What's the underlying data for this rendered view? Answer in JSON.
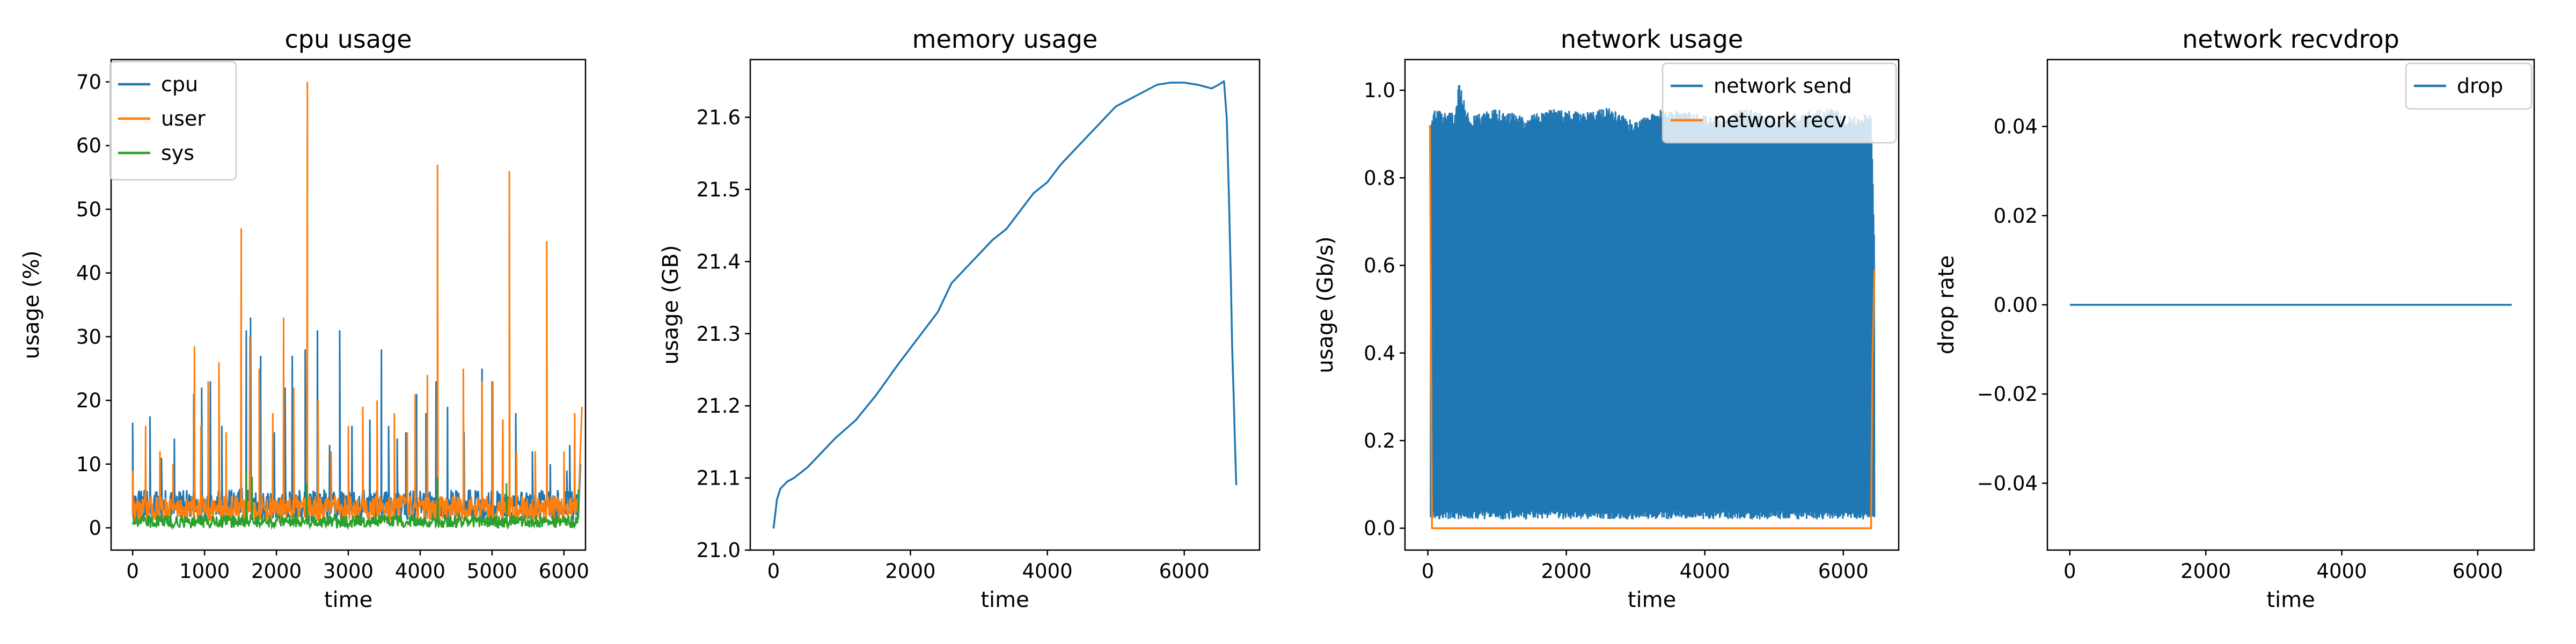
{
  "chart_data": [
    {
      "type": "line",
      "title": "cpu usage",
      "xlabel": "time",
      "ylabel": "usage (%)",
      "xlim": [
        -300,
        6300
      ],
      "ylim": [
        -3.5,
        73.5
      ],
      "xticks": [
        0,
        1000,
        2000,
        3000,
        4000,
        5000,
        6000
      ],
      "yticks": [
        0,
        10,
        20,
        30,
        40,
        50,
        60,
        70
      ],
      "legend_position": "upper left",
      "series": [
        {
          "name": "cpu",
          "color": "#1f77b4",
          "base": [
            1,
            6
          ],
          "points": [
            [
              0,
              16.5
            ],
            [
              240,
              17.5
            ],
            [
              400,
              11
            ],
            [
              580,
              14
            ],
            [
              850,
              21
            ],
            [
              960,
              22
            ],
            [
              1080,
              23
            ],
            [
              1240,
              16
            ],
            [
              1510,
              21
            ],
            [
              1580,
              31
            ],
            [
              1640,
              33
            ],
            [
              1780,
              27
            ],
            [
              1970,
              15
            ],
            [
              2120,
              22
            ],
            [
              2220,
              27
            ],
            [
              2400,
              28
            ],
            [
              2570,
              31
            ],
            [
              2740,
              13
            ],
            [
              2880,
              31
            ],
            [
              3050,
              16
            ],
            [
              3300,
              17
            ],
            [
              3460,
              28
            ],
            [
              3560,
              16
            ],
            [
              3680,
              14
            ],
            [
              3800,
              15
            ],
            [
              3950,
              21
            ],
            [
              4080,
              18
            ],
            [
              4220,
              23
            ],
            [
              4380,
              19
            ],
            [
              4610,
              15
            ],
            [
              4860,
              25
            ],
            [
              5000,
              23
            ],
            [
              5150,
              17
            ],
            [
              5330,
              18
            ],
            [
              5560,
              12
            ],
            [
              5810,
              10
            ],
            [
              6040,
              9
            ],
            [
              6080,
              13
            ],
            [
              6180,
              2
            ],
            [
              6230,
              10
            ]
          ]
        },
        {
          "name": "user",
          "color": "#ff7f0e",
          "base": [
            1,
            5
          ],
          "points": [
            [
              0,
              9
            ],
            [
              180,
              16
            ],
            [
              380,
              12
            ],
            [
              560,
              10
            ],
            [
              860,
              28.5
            ],
            [
              950,
              16
            ],
            [
              1050,
              23
            ],
            [
              1200,
              26
            ],
            [
              1300,
              15
            ],
            [
              1510,
              47
            ],
            [
              1630,
              30
            ],
            [
              1760,
              25
            ],
            [
              1950,
              18
            ],
            [
              2100,
              33
            ],
            [
              2240,
              22
            ],
            [
              2430,
              70
            ],
            [
              2580,
              20
            ],
            [
              2760,
              12
            ],
            [
              3000,
              16
            ],
            [
              3200,
              19
            ],
            [
              3400,
              20
            ],
            [
              3640,
              18
            ],
            [
              3820,
              15
            ],
            [
              3930,
              21
            ],
            [
              4100,
              24
            ],
            [
              4240,
              57
            ],
            [
              4600,
              25
            ],
            [
              4860,
              23
            ],
            [
              5010,
              23
            ],
            [
              5150,
              17
            ],
            [
              5240,
              56
            ],
            [
              5340,
              12
            ],
            [
              5600,
              12
            ],
            [
              5760,
              45
            ],
            [
              6000,
              12
            ],
            [
              6150,
              18
            ],
            [
              6250,
              19
            ]
          ]
        },
        {
          "name": "sys",
          "color": "#2ca02c",
          "base": [
            0,
            2
          ],
          "points": [
            [
              1580,
              9
            ],
            [
              1660,
              8
            ],
            [
              2420,
              7
            ],
            [
              4240,
              8
            ],
            [
              5200,
              7
            ],
            [
              6200,
              6
            ]
          ]
        }
      ]
    },
    {
      "type": "line",
      "title": "memory usage",
      "xlabel": "time",
      "ylabel": "usage (GB)",
      "xlim": [
        -340,
        7100
      ],
      "ylim": [
        21.0,
        21.68
      ],
      "xticks": [
        0,
        2000,
        4000,
        6000
      ],
      "yticks": [
        21.0,
        21.1,
        21.2,
        21.3,
        21.4,
        21.5,
        21.6
      ],
      "series": [
        {
          "name": "",
          "color": "#1f77b4",
          "points": [
            [
              0,
              21.03
            ],
            [
              50,
              21.07
            ],
            [
              100,
              21.085
            ],
            [
              200,
              21.095
            ],
            [
              300,
              21.1
            ],
            [
              500,
              21.115
            ],
            [
              700,
              21.135
            ],
            [
              900,
              21.155
            ],
            [
              1200,
              21.18
            ],
            [
              1500,
              21.215
            ],
            [
              1800,
              21.255
            ],
            [
              2000,
              21.28
            ],
            [
              2200,
              21.305
            ],
            [
              2400,
              21.33
            ],
            [
              2600,
              21.37
            ],
            [
              2800,
              21.39
            ],
            [
              3000,
              21.41
            ],
            [
              3200,
              21.43
            ],
            [
              3400,
              21.445
            ],
            [
              3600,
              21.47
            ],
            [
              3800,
              21.495
            ],
            [
              4000,
              21.51
            ],
            [
              4200,
              21.535
            ],
            [
              4400,
              21.555
            ],
            [
              4600,
              21.575
            ],
            [
              4800,
              21.595
            ],
            [
              5000,
              21.615
            ],
            [
              5200,
              21.625
            ],
            [
              5400,
              21.635
            ],
            [
              5600,
              21.645
            ],
            [
              5800,
              21.648
            ],
            [
              6000,
              21.648
            ],
            [
              6200,
              21.645
            ],
            [
              6400,
              21.64
            ],
            [
              6500,
              21.645
            ],
            [
              6580,
              21.65
            ],
            [
              6620,
              21.6
            ],
            [
              6650,
              21.5
            ],
            [
              6680,
              21.38
            ],
            [
              6700,
              21.28
            ],
            [
              6720,
              21.22
            ],
            [
              6740,
              21.15
            ],
            [
              6760,
              21.09
            ]
          ]
        }
      ]
    },
    {
      "type": "line",
      "title": "network usage",
      "xlabel": "time",
      "ylabel": "usage (Gb/s)",
      "xlim": [
        -330,
        6800
      ],
      "ylim": [
        -0.05,
        1.07
      ],
      "xticks": [
        0,
        2000,
        4000,
        6000
      ],
      "yticks": [
        0.0,
        0.2,
        0.4,
        0.6,
        0.8,
        1.0
      ],
      "legend_position": "upper right",
      "series": [
        {
          "name": "network send",
          "color": "#1f77b4",
          "band_low": 0.02,
          "envelope": [
            [
              40,
              0.92
            ],
            [
              100,
              0.96
            ],
            [
              200,
              0.95
            ],
            [
              400,
              0.95
            ],
            [
              450,
              1.02
            ],
            [
              600,
              0.94
            ],
            [
              1000,
              0.96
            ],
            [
              1400,
              0.94
            ],
            [
              1800,
              0.96
            ],
            [
              2200,
              0.95
            ],
            [
              2600,
              0.96
            ],
            [
              3000,
              0.93
            ],
            [
              3400,
              0.96
            ],
            [
              3800,
              0.95
            ],
            [
              4200,
              0.94
            ],
            [
              4600,
              0.96
            ],
            [
              5000,
              0.94
            ],
            [
              5400,
              0.95
            ],
            [
              5800,
              0.96
            ],
            [
              6200,
              0.94
            ],
            [
              6400,
              0.95
            ],
            [
              6450,
              0.66
            ]
          ]
        },
        {
          "name": "network recv",
          "color": "#ff7f0e",
          "points": [
            [
              30,
              0.92
            ],
            [
              60,
              0.0
            ],
            [
              6400,
              0.0
            ],
            [
              6420,
              0.38
            ],
            [
              6450,
              0.59
            ]
          ]
        }
      ]
    },
    {
      "type": "line",
      "title": "network recvdrop",
      "xlabel": "time",
      "ylabel": "drop rate",
      "xlim": [
        -330,
        6830
      ],
      "ylim": [
        -0.055,
        0.055
      ],
      "xticks": [
        0,
        2000,
        4000,
        6000
      ],
      "yticks": [
        -0.04,
        -0.02,
        0.0,
        0.02,
        0.04
      ],
      "ytick_labels": [
        "−0.04",
        "−0.02",
        "0.00",
        "0.02",
        "0.04"
      ],
      "legend_position": "upper right",
      "series": [
        {
          "name": "drop",
          "color": "#1f77b4",
          "points": [
            [
              0,
              0.0
            ],
            [
              6500,
              0.0
            ]
          ]
        }
      ]
    }
  ]
}
